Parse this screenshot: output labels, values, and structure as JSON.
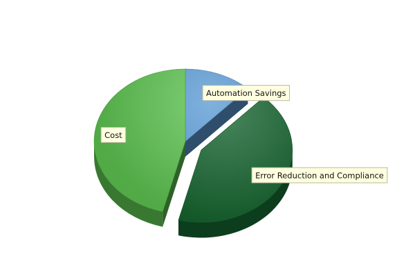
{
  "chart_data": {
    "type": "pie",
    "title": "",
    "slices": [
      {
        "name": "Automation Savings",
        "value": 12,
        "color": "#5b9bd5",
        "exploded": false
      },
      {
        "name": "Error Reduction and Compliance",
        "value": 42,
        "color": "#14632e",
        "exploded": true
      },
      {
        "name": "Cost",
        "value": 46,
        "color": "#5cc14f",
        "exploded": false
      }
    ],
    "start_angle": "12 o'clock",
    "direction": "clockwise",
    "style": "3d",
    "legend": "none",
    "label_style": "callout boxes"
  }
}
